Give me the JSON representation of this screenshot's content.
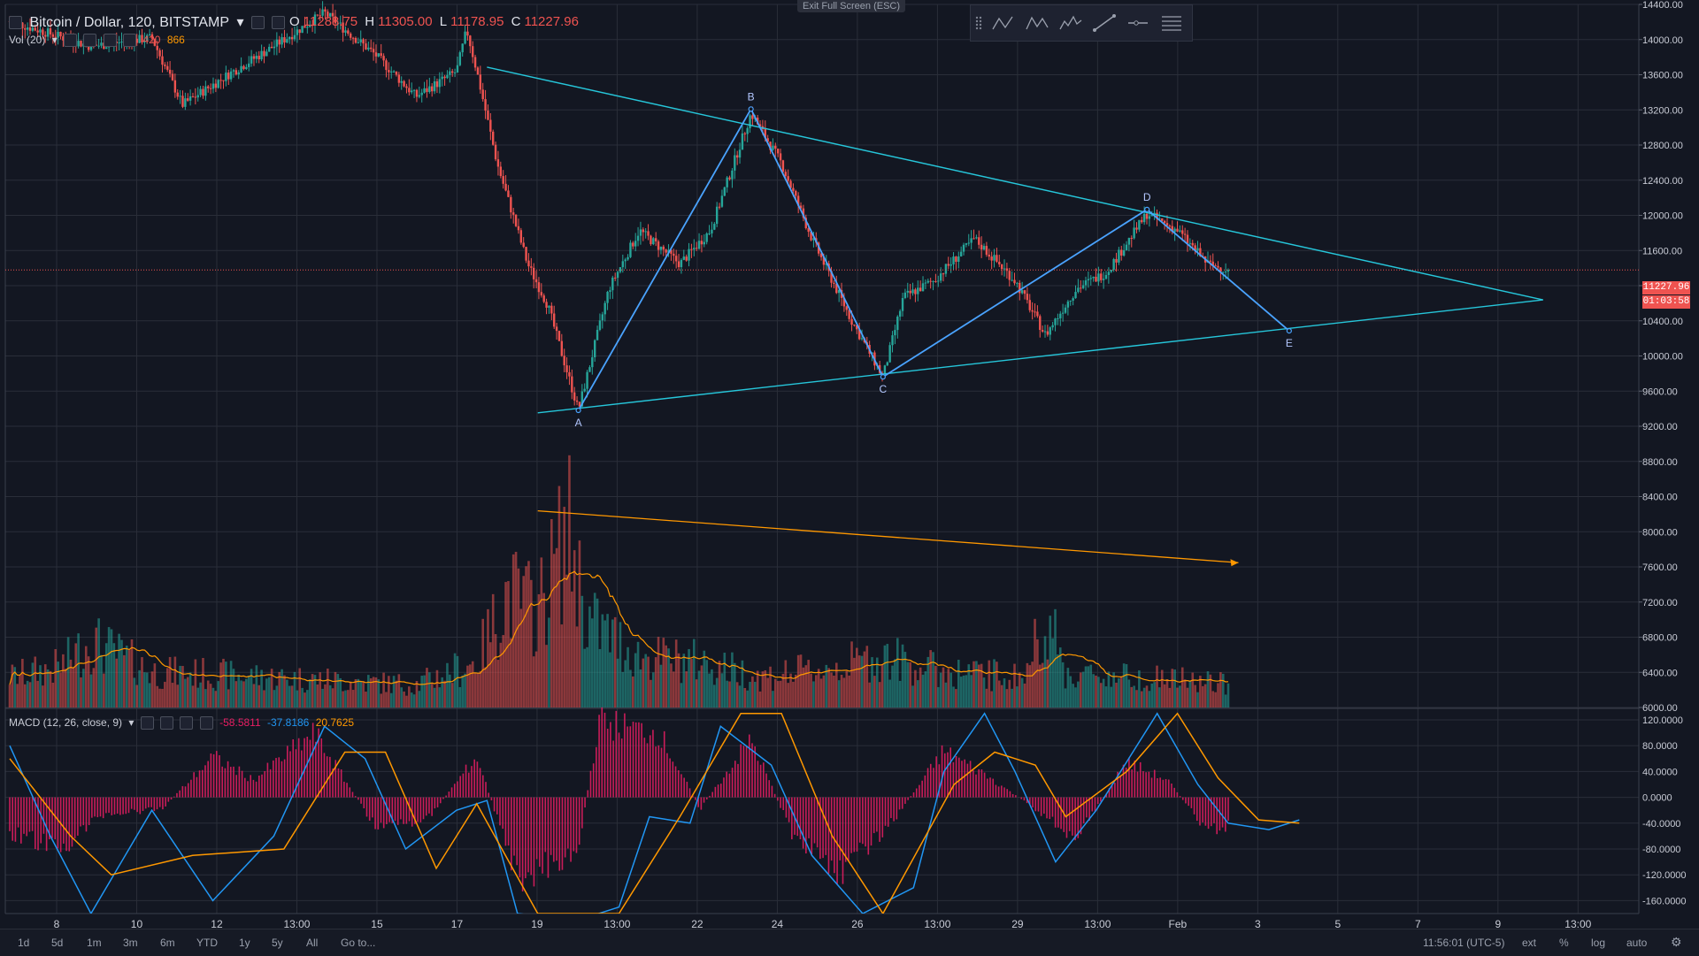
{
  "header": {
    "symbol_title": "Bitcoin / Dollar, 120, BITSTAMP",
    "ohlc": [
      {
        "k": "O",
        "v": "11288.75"
      },
      {
        "k": "H",
        "v": "11305.00"
      },
      {
        "k": "L",
        "v": "11178.95"
      },
      {
        "k": "C",
        "v": "11227.96"
      }
    ],
    "volume_label": "Vol (20)",
    "volume_values": [
      "420",
      "866"
    ],
    "exit_fullscreen": "Exit Full Screen (ESC)"
  },
  "macd_legend": {
    "label": "MACD (12, 26, close, 9)",
    "values": [
      {
        "v": "-58.5811",
        "color": "#e91e63"
      },
      {
        "v": "-37.8186",
        "color": "#2196f3"
      },
      {
        "v": "20.7625",
        "color": "#ff9800"
      }
    ]
  },
  "price_tags": {
    "last_price": "11227.96",
    "countdown": "01:03:58"
  },
  "drawing_toolbar": {
    "tools": [
      "grip-icon",
      "abcd-pattern-icon",
      "ace-pattern-icon",
      "elliott-wave-icon",
      "trend-line-icon",
      "horizontal-ray-icon",
      "menu-icon"
    ]
  },
  "bottom_bar": {
    "ranges": [
      "1d",
      "5d",
      "1m",
      "3m",
      "6m",
      "YTD",
      "1y",
      "5y",
      "All",
      "Go to..."
    ],
    "clock": "11:56:01 (UTC-5)",
    "options": [
      "ext",
      "%",
      "log",
      "auto"
    ]
  },
  "colors": {
    "background": "#131722",
    "grid": "#2a2e39",
    "up": "#26a69a",
    "down": "#ef5350",
    "pattern": "#4aa3ff",
    "triangle": "#26c6da",
    "arrow": "#ff9800",
    "macd_line": "#2196f3",
    "signal_line": "#ff9800",
    "histogram": "#e91e63"
  },
  "chart_data": {
    "type": "candlestick",
    "x_tick_labels": [
      "8",
      "10",
      "12",
      "13:00",
      "15",
      "17",
      "19",
      "13:00",
      "22",
      "24",
      "26",
      "13:00",
      "29",
      "13:00",
      "Feb",
      "3",
      "5",
      "7",
      "9",
      "13:00"
    ],
    "price_axis": {
      "min": 6000,
      "max": 14400,
      "ticks": [
        "14400.00",
        "14000.00",
        "13600.00",
        "13200.00",
        "12800.00",
        "12400.00",
        "12000.00",
        "11600.00",
        "10800.00",
        "10400.00",
        "10000.00",
        "9600.00",
        "9200.00",
        "8800.00",
        "8400.00",
        "8000.00",
        "7600.00",
        "7200.00",
        "6800.00",
        "6400.00",
        "6000.00"
      ]
    },
    "last_price": 11227.96,
    "price_path": [
      {
        "x": 0,
        "y": 14200
      },
      {
        "x": 8,
        "y": 13900
      },
      {
        "x": 14,
        "y": 14000
      },
      {
        "x": 17,
        "y": 13200
      },
      {
        "x": 22,
        "y": 13600
      },
      {
        "x": 26,
        "y": 13900
      },
      {
        "x": 31,
        "y": 14300
      },
      {
        "x": 36,
        "y": 13800
      },
      {
        "x": 40,
        "y": 13300
      },
      {
        "x": 44,
        "y": 13600
      },
      {
        "x": 45,
        "y": 14100
      },
      {
        "x": 46,
        "y": 13600
      },
      {
        "x": 48,
        "y": 12500
      },
      {
        "x": 51,
        "y": 11300
      },
      {
        "x": 53,
        "y": 10800
      },
      {
        "x": 56,
        "y": 9550
      },
      {
        "x": 59,
        "y": 11000
      },
      {
        "x": 62,
        "y": 11700
      },
      {
        "x": 66,
        "y": 11300
      },
      {
        "x": 69,
        "y": 11700
      },
      {
        "x": 73,
        "y": 13100
      },
      {
        "x": 76,
        "y": 12500
      },
      {
        "x": 79,
        "y": 11600
      },
      {
        "x": 83,
        "y": 10600
      },
      {
        "x": 86,
        "y": 9950
      },
      {
        "x": 88,
        "y": 10900
      },
      {
        "x": 91,
        "y": 11100
      },
      {
        "x": 95,
        "y": 11600
      },
      {
        "x": 99,
        "y": 11100
      },
      {
        "x": 102,
        "y": 10450
      },
      {
        "x": 105,
        "y": 11000
      },
      {
        "x": 108,
        "y": 11200
      },
      {
        "x": 112,
        "y": 11900
      },
      {
        "x": 115,
        "y": 11700
      },
      {
        "x": 118,
        "y": 11300
      },
      {
        "x": 120,
        "y": 11228
      }
    ],
    "volume_path": [
      {
        "x": 0,
        "y": 1.2
      },
      {
        "x": 5,
        "y": 1.6
      },
      {
        "x": 8,
        "y": 2.6
      },
      {
        "x": 14,
        "y": 1.4
      },
      {
        "x": 20,
        "y": 1.3
      },
      {
        "x": 30,
        "y": 1.1
      },
      {
        "x": 40,
        "y": 0.9
      },
      {
        "x": 46,
        "y": 1.8
      },
      {
        "x": 49,
        "y": 4.5
      },
      {
        "x": 52,
        "y": 3.8
      },
      {
        "x": 55,
        "y": 7.0
      },
      {
        "x": 57,
        "y": 3.4
      },
      {
        "x": 62,
        "y": 2.0
      },
      {
        "x": 68,
        "y": 1.8
      },
      {
        "x": 74,
        "y": 1.2
      },
      {
        "x": 80,
        "y": 1.5
      },
      {
        "x": 86,
        "y": 2.0
      },
      {
        "x": 92,
        "y": 1.4
      },
      {
        "x": 100,
        "y": 1.2
      },
      {
        "x": 102,
        "y": 3.8
      },
      {
        "x": 104,
        "y": 1.3
      },
      {
        "x": 112,
        "y": 1.2
      },
      {
        "x": 120,
        "y": 0.9
      }
    ],
    "patterns": {
      "abcde_points": [
        {
          "label": "A",
          "x": 56,
          "y": 9550
        },
        {
          "label": "B",
          "x": 73,
          "y": 13150
        },
        {
          "label": "C",
          "x": 86,
          "y": 9950
        },
        {
          "label": "D",
          "x": 112,
          "y": 11950
        },
        {
          "label": "E",
          "x": 126,
          "y": 10500
        }
      ],
      "triangle_upper": [
        {
          "x": 47,
          "y": 13650
        },
        {
          "x": 151,
          "y": 10870
        }
      ],
      "triangle_lower": [
        {
          "x": 52,
          "y": 9520
        },
        {
          "x": 151,
          "y": 10870
        }
      ],
      "volume_trend_arrow": [
        {
          "x": 52,
          "y": 8350
        },
        {
          "x": 121,
          "y": 7730
        }
      ]
    },
    "macd": {
      "axis_ticks": [
        "120.0000",
        "80.0000",
        "40.0000",
        "0.0000",
        "-40.0000",
        "-80.0000",
        "-120.0000",
        "-160.0000"
      ],
      "min": -180,
      "max": 135,
      "macd_path": [
        {
          "x": 0,
          "y": 80
        },
        {
          "x": 4,
          "y": -60
        },
        {
          "x": 8,
          "y": -180
        },
        {
          "x": 14,
          "y": -20
        },
        {
          "x": 20,
          "y": -160
        },
        {
          "x": 26,
          "y": -60
        },
        {
          "x": 31,
          "y": 110
        },
        {
          "x": 35,
          "y": 60
        },
        {
          "x": 39,
          "y": -80
        },
        {
          "x": 44,
          "y": -20
        },
        {
          "x": 47,
          "y": -5
        },
        {
          "x": 50,
          "y": -180
        },
        {
          "x": 56,
          "y": -190
        },
        {
          "x": 60,
          "y": -170
        },
        {
          "x": 63,
          "y": -30
        },
        {
          "x": 67,
          "y": -40
        },
        {
          "x": 70,
          "y": 110
        },
        {
          "x": 75,
          "y": 50
        },
        {
          "x": 79,
          "y": -90
        },
        {
          "x": 84,
          "y": -180
        },
        {
          "x": 89,
          "y": -140
        },
        {
          "x": 92,
          "y": 40
        },
        {
          "x": 96,
          "y": 130
        },
        {
          "x": 99,
          "y": 40
        },
        {
          "x": 103,
          "y": -100
        },
        {
          "x": 107,
          "y": -20
        },
        {
          "x": 113,
          "y": 130
        },
        {
          "x": 117,
          "y": 20
        },
        {
          "x": 120,
          "y": -40
        },
        {
          "x": 124,
          "y": -50
        },
        {
          "x": 127,
          "y": -35
        }
      ],
      "signal_path": [
        {
          "x": 0,
          "y": 60
        },
        {
          "x": 6,
          "y": -60
        },
        {
          "x": 10,
          "y": -120
        },
        {
          "x": 18,
          "y": -90
        },
        {
          "x": 27,
          "y": -80
        },
        {
          "x": 33,
          "y": 70
        },
        {
          "x": 37,
          "y": 70
        },
        {
          "x": 42,
          "y": -110
        },
        {
          "x": 46,
          "y": -10
        },
        {
          "x": 52,
          "y": -180
        },
        {
          "x": 60,
          "y": -180
        },
        {
          "x": 66,
          "y": -30
        },
        {
          "x": 72,
          "y": 130
        },
        {
          "x": 76,
          "y": 130
        },
        {
          "x": 81,
          "y": -60
        },
        {
          "x": 86,
          "y": -180
        },
        {
          "x": 93,
          "y": 20
        },
        {
          "x": 97,
          "y": 70
        },
        {
          "x": 101,
          "y": 50
        },
        {
          "x": 104,
          "y": -30
        },
        {
          "x": 110,
          "y": 40
        },
        {
          "x": 115,
          "y": 130
        },
        {
          "x": 119,
          "y": 30
        },
        {
          "x": 123,
          "y": -35
        },
        {
          "x": 127,
          "y": -40
        }
      ],
      "histogram_path": [
        {
          "x": 0,
          "y": -60
        },
        {
          "x": 5,
          "y": -90
        },
        {
          "x": 9,
          "y": -30
        },
        {
          "x": 15,
          "y": -20
        },
        {
          "x": 20,
          "y": 70
        },
        {
          "x": 24,
          "y": 30
        },
        {
          "x": 30,
          "y": 110
        },
        {
          "x": 36,
          "y": -50
        },
        {
          "x": 41,
          "y": -40
        },
        {
          "x": 46,
          "y": 70
        },
        {
          "x": 50,
          "y": -140
        },
        {
          "x": 56,
          "y": -90
        },
        {
          "x": 58,
          "y": 130
        },
        {
          "x": 64,
          "y": 110
        },
        {
          "x": 68,
          "y": -20
        },
        {
          "x": 73,
          "y": 100
        },
        {
          "x": 77,
          "y": -60
        },
        {
          "x": 82,
          "y": -130
        },
        {
          "x": 87,
          "y": -40
        },
        {
          "x": 92,
          "y": 80
        },
        {
          "x": 96,
          "y": 40
        },
        {
          "x": 101,
          "y": -20
        },
        {
          "x": 105,
          "y": -70
        },
        {
          "x": 110,
          "y": 60
        },
        {
          "x": 114,
          "y": 30
        },
        {
          "x": 118,
          "y": -60
        },
        {
          "x": 120,
          "y": -50
        }
      ]
    }
  }
}
